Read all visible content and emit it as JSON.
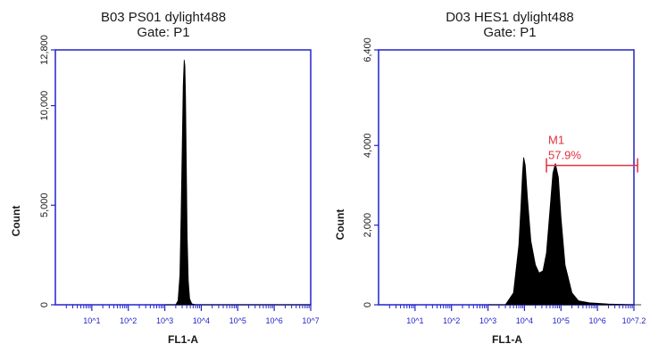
{
  "chart_data": [
    {
      "type": "area",
      "title": "B03 PS01 dylight488",
      "subtitle": "Gate: P1",
      "xlabel": "FL1-A",
      "ylabel": "Count",
      "xscale": "log",
      "xlim": [
        1,
        10000000
      ],
      "ylim": [
        0,
        12800
      ],
      "yticks": [
        0,
        5000,
        10000,
        12800
      ],
      "ytick_labels": [
        "0",
        "5,000",
        "10,000",
        "12,800"
      ],
      "xtick_labels": [
        "10^1",
        "10^2",
        "10^3",
        "10^4",
        "10^5",
        "10^6",
        "10^7"
      ],
      "series": [
        {
          "x": [
            1000,
            2000,
            2300,
            2600,
            2800,
            3000,
            3200,
            3400,
            3550,
            3700,
            3900,
            4100,
            4400,
            4800,
            5500,
            7000,
            10000000
          ],
          "values": [
            0,
            0,
            200,
            1500,
            4500,
            8000,
            11000,
            12300,
            12000,
            10500,
            7000,
            3500,
            1200,
            300,
            50,
            0,
            0
          ]
        }
      ]
    },
    {
      "type": "area",
      "title": "D03 HES1 dylight488",
      "subtitle": "Gate: P1",
      "xlabel": "FL1-A",
      "ylabel": "Count",
      "xscale": "log",
      "xlim": [
        1,
        10000000
      ],
      "ylim": [
        0,
        6400
      ],
      "yticks": [
        0,
        2000,
        4000,
        6400
      ],
      "ytick_labels": [
        "0",
        "2,000",
        "4,000",
        "6,400"
      ],
      "xtick_labels": [
        "10^1",
        "10^2",
        "10^3",
        "10^4",
        "10^5",
        "10^6",
        "10^7.2"
      ],
      "series": [
        {
          "x": [
            1000,
            3000,
            5000,
            7000,
            8000,
            8800,
            9500,
            10500,
            12000,
            15000,
            20000,
            25000,
            32000,
            40000,
            50000,
            60000,
            70000,
            85000,
            100000,
            130000,
            200000,
            300000,
            600000,
            2000000,
            10000000,
            15800000
          ],
          "values": [
            0,
            0,
            300,
            1500,
            2500,
            3300,
            3700,
            3500,
            2700,
            1600,
            1000,
            800,
            850,
            1300,
            2400,
            3300,
            3550,
            3200,
            2200,
            1000,
            300,
            100,
            50,
            20,
            0,
            0
          ]
        }
      ],
      "annotations": [
        {
          "label": "M1",
          "value_label": "57.9%",
          "x_range": [
            40000,
            12600000
          ],
          "y": 3500
        }
      ]
    }
  ],
  "colors": {
    "axis": "#2222cc",
    "fill": "#000000",
    "marker": "#e03040",
    "text": "#1a1a1a"
  }
}
